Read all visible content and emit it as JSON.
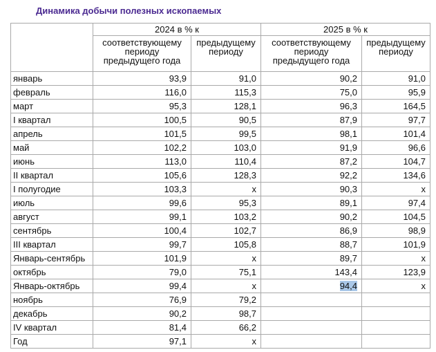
{
  "title": "Динамика добычи полезных ископаемых",
  "header": {
    "groups": [
      "2024 в % к",
      "2025 в % к"
    ],
    "columns": [
      "соответствующему периоду предыдущего года",
      "предыдущему периоду",
      "соответствующему периоду предыдущего года",
      "предыдущему периоду"
    ]
  },
  "table": {
    "rows": [
      [
        "январь",
        "93,9",
        "91,0",
        "90,2",
        "91,0"
      ],
      [
        "февраль",
        "116,0",
        "115,3",
        "75,0",
        "95,9"
      ],
      [
        "март",
        "95,3",
        "128,1",
        "96,3",
        "164,5"
      ],
      [
        "I квартал",
        "100,5",
        "90,5",
        "87,9",
        "97,7"
      ],
      [
        "апрель",
        "101,5",
        "99,5",
        "98,1",
        "101,4"
      ],
      [
        "май",
        "102,2",
        "103,0",
        "91,9",
        "96,6"
      ],
      [
        "июнь",
        "113,0",
        "110,4",
        "87,2",
        "104,7"
      ],
      [
        "II квартал",
        "105,6",
        "128,3",
        "92,2",
        "134,6"
      ],
      [
        "I полугодие",
        "103,3",
        "x",
        "90,3",
        "x"
      ],
      [
        "июль",
        "99,6",
        "95,3",
        "89,1",
        "97,4"
      ],
      [
        "август",
        "99,1",
        "103,2",
        "90,2",
        "104,5"
      ],
      [
        "сентябрь",
        "100,4",
        "102,7",
        "86,9",
        "98,9"
      ],
      [
        "III квартал",
        "99,7",
        "105,8",
        "88,7",
        "101,9"
      ],
      [
        "Январь-сентябрь",
        "101,9",
        "x",
        "89,7",
        "x"
      ],
      [
        "октябрь",
        "79,0",
        "75,1",
        "143,4",
        "123,9"
      ],
      [
        "Январь-октябрь",
        "99,4",
        "x",
        "94,4",
        "x"
      ],
      [
        "ноябрь",
        "76,9",
        "79,2"
      ],
      [
        "декабрь",
        "90,2",
        "98,7"
      ],
      [
        "IV квартал",
        "81,4",
        "66,2"
      ],
      [
        "Год",
        "97,1",
        "x"
      ]
    ]
  }
}
